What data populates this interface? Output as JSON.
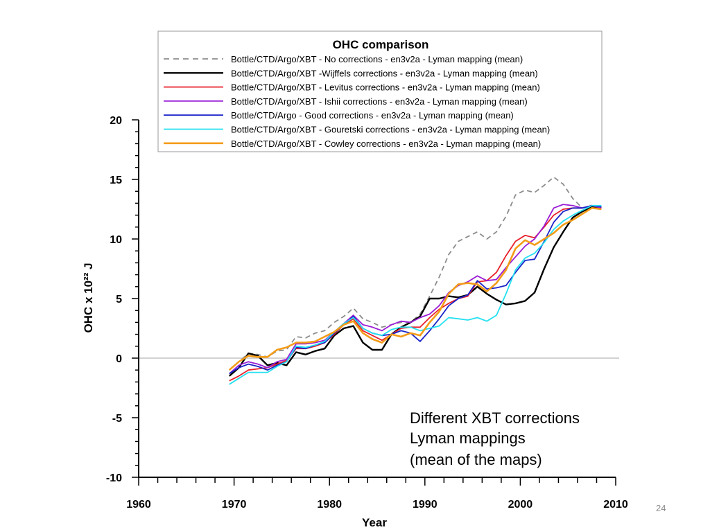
{
  "chart_data": {
    "type": "line",
    "title": "OHC comparison",
    "xlabel": "Year",
    "ylabel": "OHC x 10²² J",
    "xlim": [
      1960,
      2010
    ],
    "ylim": [
      -10,
      20
    ],
    "x_major_ticks": [
      "1960",
      "1970",
      "1980",
      "1990",
      "2000",
      "2010"
    ],
    "y_major_ticks": [
      "-10",
      "-5",
      "0",
      "5",
      "10",
      "15",
      "20"
    ],
    "zero_line": true,
    "grid": false,
    "legend_position": "top",
    "x": [
      1969.5,
      1970.5,
      1971.5,
      1972.5,
      1973.5,
      1974.5,
      1975.5,
      1976.5,
      1977.5,
      1978.5,
      1979.5,
      1980.5,
      1981.5,
      1982.5,
      1983.5,
      1984.5,
      1985.5,
      1986.5,
      1987.5,
      1988.5,
      1989.5,
      1990.5,
      1991.5,
      1992.5,
      1993.5,
      1994.5,
      1995.5,
      1996.5,
      1997.5,
      1998.5,
      1999.5,
      2000.5,
      2001.5,
      2002.5,
      2003.5,
      2004.5,
      2005.5,
      2006.5,
      2007.5,
      2008.5
    ],
    "series": [
      {
        "name": "Bottle/CTD/Argo/XBT - No corrections - en3v2a - Lyman mapping (mean)",
        "color": "#8c8c8c",
        "dashed": true,
        "width": 1.8,
        "values": [
          -1.0,
          -0.3,
          0.4,
          0.3,
          0.1,
          0.6,
          0.7,
          1.8,
          1.7,
          2.1,
          2.3,
          3.0,
          3.5,
          4.2,
          3.3,
          3.0,
          2.6,
          2.8,
          3.0,
          3.0,
          3.7,
          5.2,
          6.8,
          8.7,
          9.8,
          10.2,
          10.6,
          10.0,
          10.6,
          11.9,
          13.7,
          14.1,
          13.9,
          14.5,
          15.2,
          14.6,
          13.4,
          12.6,
          12.8,
          12.7
        ]
      },
      {
        "name": "Bottle/CTD/Argo/XBT -Wijffels corrections - en3v2a - Lyman mapping (mean)",
        "color": "#000000",
        "dashed": false,
        "width": 2.4,
        "values": [
          -1.5,
          -0.8,
          0.4,
          0.2,
          -0.6,
          -0.4,
          -0.6,
          0.5,
          0.3,
          0.6,
          0.8,
          1.9,
          2.5,
          2.7,
          1.3,
          0.7,
          0.7,
          2.0,
          2.6,
          3.0,
          3.5,
          5.0,
          5.0,
          5.2,
          5.1,
          5.3,
          6.0,
          5.4,
          4.9,
          4.5,
          4.6,
          4.8,
          5.5,
          7.5,
          9.3,
          10.6,
          11.8,
          12.3,
          12.7,
          12.6
        ]
      },
      {
        "name": "Bottle/CTD/Argo/XBT - Levitus corrections - en3v2a - Lyman mapping (mean)",
        "color": "#e8202a",
        "dashed": false,
        "width": 1.8,
        "values": [
          -1.9,
          -1.5,
          -1.0,
          -0.9,
          -0.8,
          -0.5,
          -0.2,
          0.8,
          0.8,
          1.0,
          1.3,
          2.0,
          2.8,
          3.3,
          2.3,
          1.9,
          1.5,
          2.0,
          2.5,
          2.6,
          2.6,
          3.4,
          4.1,
          4.6,
          5.0,
          5.2,
          6.4,
          6.5,
          7.2,
          8.6,
          9.8,
          10.3,
          10.1,
          11.0,
          12.0,
          12.5,
          12.6,
          12.6,
          12.8,
          12.6
        ]
      },
      {
        "name": "Bottle/CTD/Argo/XBT - Ishii corrections - en3v2a - Lyman mapping (mean)",
        "color": "#9a1dd6",
        "dashed": false,
        "width": 1.8,
        "values": [
          -1.3,
          -0.6,
          -0.3,
          -0.5,
          -0.8,
          -0.3,
          -0.1,
          1.2,
          1.2,
          1.3,
          1.5,
          2.2,
          2.9,
          3.6,
          2.8,
          2.6,
          2.3,
          2.8,
          3.1,
          3.0,
          3.4,
          3.7,
          4.4,
          5.5,
          6.1,
          6.4,
          6.9,
          6.5,
          6.6,
          7.6,
          8.5,
          9.4,
          10.0,
          11.1,
          12.6,
          12.9,
          12.8,
          12.6,
          12.8,
          12.6
        ]
      },
      {
        "name": "Bottle/CTD/Argo - Good corrections - en3v2a - Lyman mapping (mean)",
        "color": "#1a24c8",
        "dashed": false,
        "width": 1.8,
        "values": [
          -1.3,
          -0.8,
          -0.5,
          -0.7,
          -1.0,
          -0.6,
          -0.3,
          0.9,
          0.8,
          1.1,
          1.3,
          2.1,
          2.8,
          3.5,
          2.5,
          2.1,
          1.9,
          2.0,
          2.3,
          2.1,
          1.4,
          2.3,
          3.3,
          4.4,
          5.0,
          5.3,
          6.5,
          5.8,
          5.9,
          6.1,
          7.2,
          8.2,
          8.3,
          9.8,
          11.4,
          12.3,
          12.6,
          12.6,
          12.8,
          12.7
        ]
      },
      {
        "name": "Bottle/CTD/Argo/XBT - Gouretski corrections - en3v2a - Lyman mapping (mean)",
        "color": "#24e0f0",
        "dashed": false,
        "width": 1.8,
        "values": [
          -2.2,
          -1.7,
          -1.2,
          -1.2,
          -1.2,
          -0.7,
          -0.3,
          1.0,
          0.9,
          1.1,
          1.4,
          2.2,
          2.9,
          3.4,
          2.5,
          2.1,
          1.9,
          2.4,
          2.6,
          2.6,
          2.3,
          2.5,
          2.7,
          3.4,
          3.3,
          3.2,
          3.4,
          3.1,
          3.6,
          5.4,
          7.4,
          8.4,
          8.8,
          9.7,
          10.8,
          11.5,
          12.0,
          12.4,
          12.8,
          12.8
        ]
      },
      {
        "name": "Bottle/CTD/Argo/XBT - Cowley corrections - en3v2a - Lyman mapping (mean)",
        "color": "#f39c18",
        "dashed": false,
        "width": 2.6,
        "values": [
          -1.0,
          -0.3,
          0.2,
          0.1,
          0.1,
          0.7,
          0.9,
          1.3,
          1.3,
          1.4,
          1.8,
          2.2,
          2.8,
          3.1,
          2.1,
          1.6,
          1.3,
          2.0,
          1.8,
          2.1,
          1.9,
          3.0,
          3.9,
          5.4,
          6.2,
          6.3,
          6.2,
          5.6,
          6.3,
          7.4,
          9.2,
          9.9,
          9.5,
          10.0,
          10.5,
          11.2,
          11.6,
          12.1,
          12.6,
          12.5
        ]
      }
    ]
  },
  "annotation": [
    "Different XBT corrections",
    "Lyman mappings",
    "(mean of the maps)"
  ],
  "page_number": "24"
}
